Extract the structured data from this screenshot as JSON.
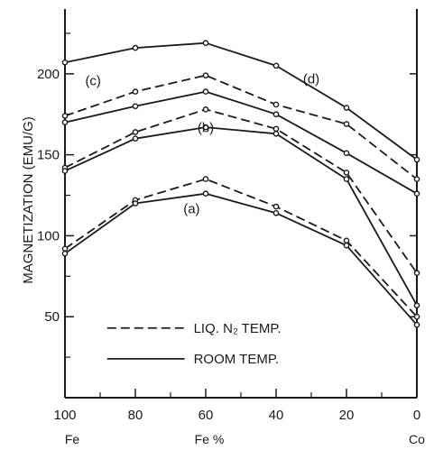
{
  "chart_data": {
    "type": "line",
    "xlabel": "Fe %",
    "ylabel": "MAGNETIZATION (EMU/G)",
    "x_end_labels": {
      "left": "Fe",
      "right": "Co"
    },
    "x_ticks": [
      100,
      80,
      60,
      40,
      20,
      0
    ],
    "y_ticks": [
      50,
      100,
      150,
      200
    ],
    "xlim": [
      100,
      0
    ],
    "ylim": [
      0,
      240
    ],
    "grid": false,
    "x": [
      100,
      80,
      60,
      40,
      20,
      0
    ],
    "series": [
      {
        "label": "(a)",
        "style": "dashed",
        "values": [
          92,
          122,
          135,
          118,
          97,
          50
        ]
      },
      {
        "label": "(a)",
        "style": "solid",
        "values": [
          89,
          120,
          126,
          114,
          94,
          45
        ]
      },
      {
        "label": "(b)",
        "style": "dashed",
        "values": [
          142,
          164,
          178,
          166,
          139,
          77
        ]
      },
      {
        "label": "(b)",
        "style": "solid",
        "values": [
          140,
          160,
          167,
          163,
          135,
          57
        ]
      },
      {
        "label": "(c)",
        "style": "dashed",
        "values": [
          174,
          189,
          199,
          181,
          169,
          135
        ]
      },
      {
        "label": "(c)",
        "style": "solid",
        "values": [
          170,
          180,
          189,
          175,
          151,
          126
        ]
      },
      {
        "label": "(d)",
        "style": "solid",
        "values": [
          207,
          216,
          219,
          205,
          179,
          147
        ]
      }
    ],
    "annotations": [
      "(a)",
      "(b)",
      "(c)",
      "(d)"
    ],
    "legend": {
      "placement": "bottom-left",
      "entries": [
        {
          "style": "dashed",
          "label": "LIQ. N₂ TEMP."
        },
        {
          "style": "solid",
          "label": "ROOM TEMP."
        }
      ]
    },
    "colors": {
      "line": "#1a1a1a",
      "marker_fill": "#ffffff"
    }
  }
}
